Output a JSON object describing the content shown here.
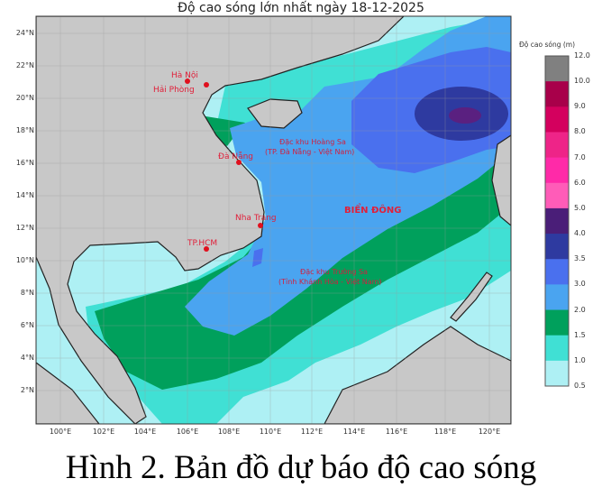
{
  "title": "Độ cao sóng lớn nhất ngày 18-12-2025",
  "caption": "Hình 2. Bản đồ dự báo độ cao sóng",
  "lat_labels": [
    "24°N",
    "22°N",
    "20°N",
    "18°N",
    "16°N",
    "14°N",
    "12°N",
    "10°N",
    "8°N",
    "6°N",
    "4°N",
    "2°N"
  ],
  "lon_labels": [
    "100°E",
    "102°E",
    "104°E",
    "106°E",
    "108°E",
    "110°E",
    "112°E",
    "114°E",
    "116°E",
    "118°E",
    "120°E"
  ],
  "cities": [
    "Hà Nội",
    "Hải Phòng",
    "Đà Nẵng",
    "Nha Trang",
    "TP.HCM"
  ],
  "regions": {
    "hoang_sa_1": "Đặc khu Hoàng Sa",
    "hoang_sa_2": "(TP. Đà Nẵng - Việt Nam)",
    "truong_sa_1": "Đặc khu Trường Sa",
    "truong_sa_2": "(Tỉnh Khánh Hòa - Việt Nam)",
    "sea": "BIỂN ĐÔNG"
  },
  "colorbar": {
    "title": "Độ cao sóng (m)",
    "ticks": [
      "12.0",
      "10.0",
      "9.0",
      "8.0",
      "7.0",
      "6.0",
      "5.0",
      "4.0",
      "3.5",
      "3.0",
      "2.0",
      "1.5",
      "1.0",
      "0.5"
    ],
    "colors": [
      "#808080",
      "#a8004a",
      "#d4005e",
      "#ee2488",
      "#ff2aa8",
      "#ff5cb8",
      "#4a1e78",
      "#2e3aa0",
      "#4a70ee",
      "#4aa4f0",
      "#00a05c",
      "#40e0d4",
      "#aef0f4"
    ]
  }
}
